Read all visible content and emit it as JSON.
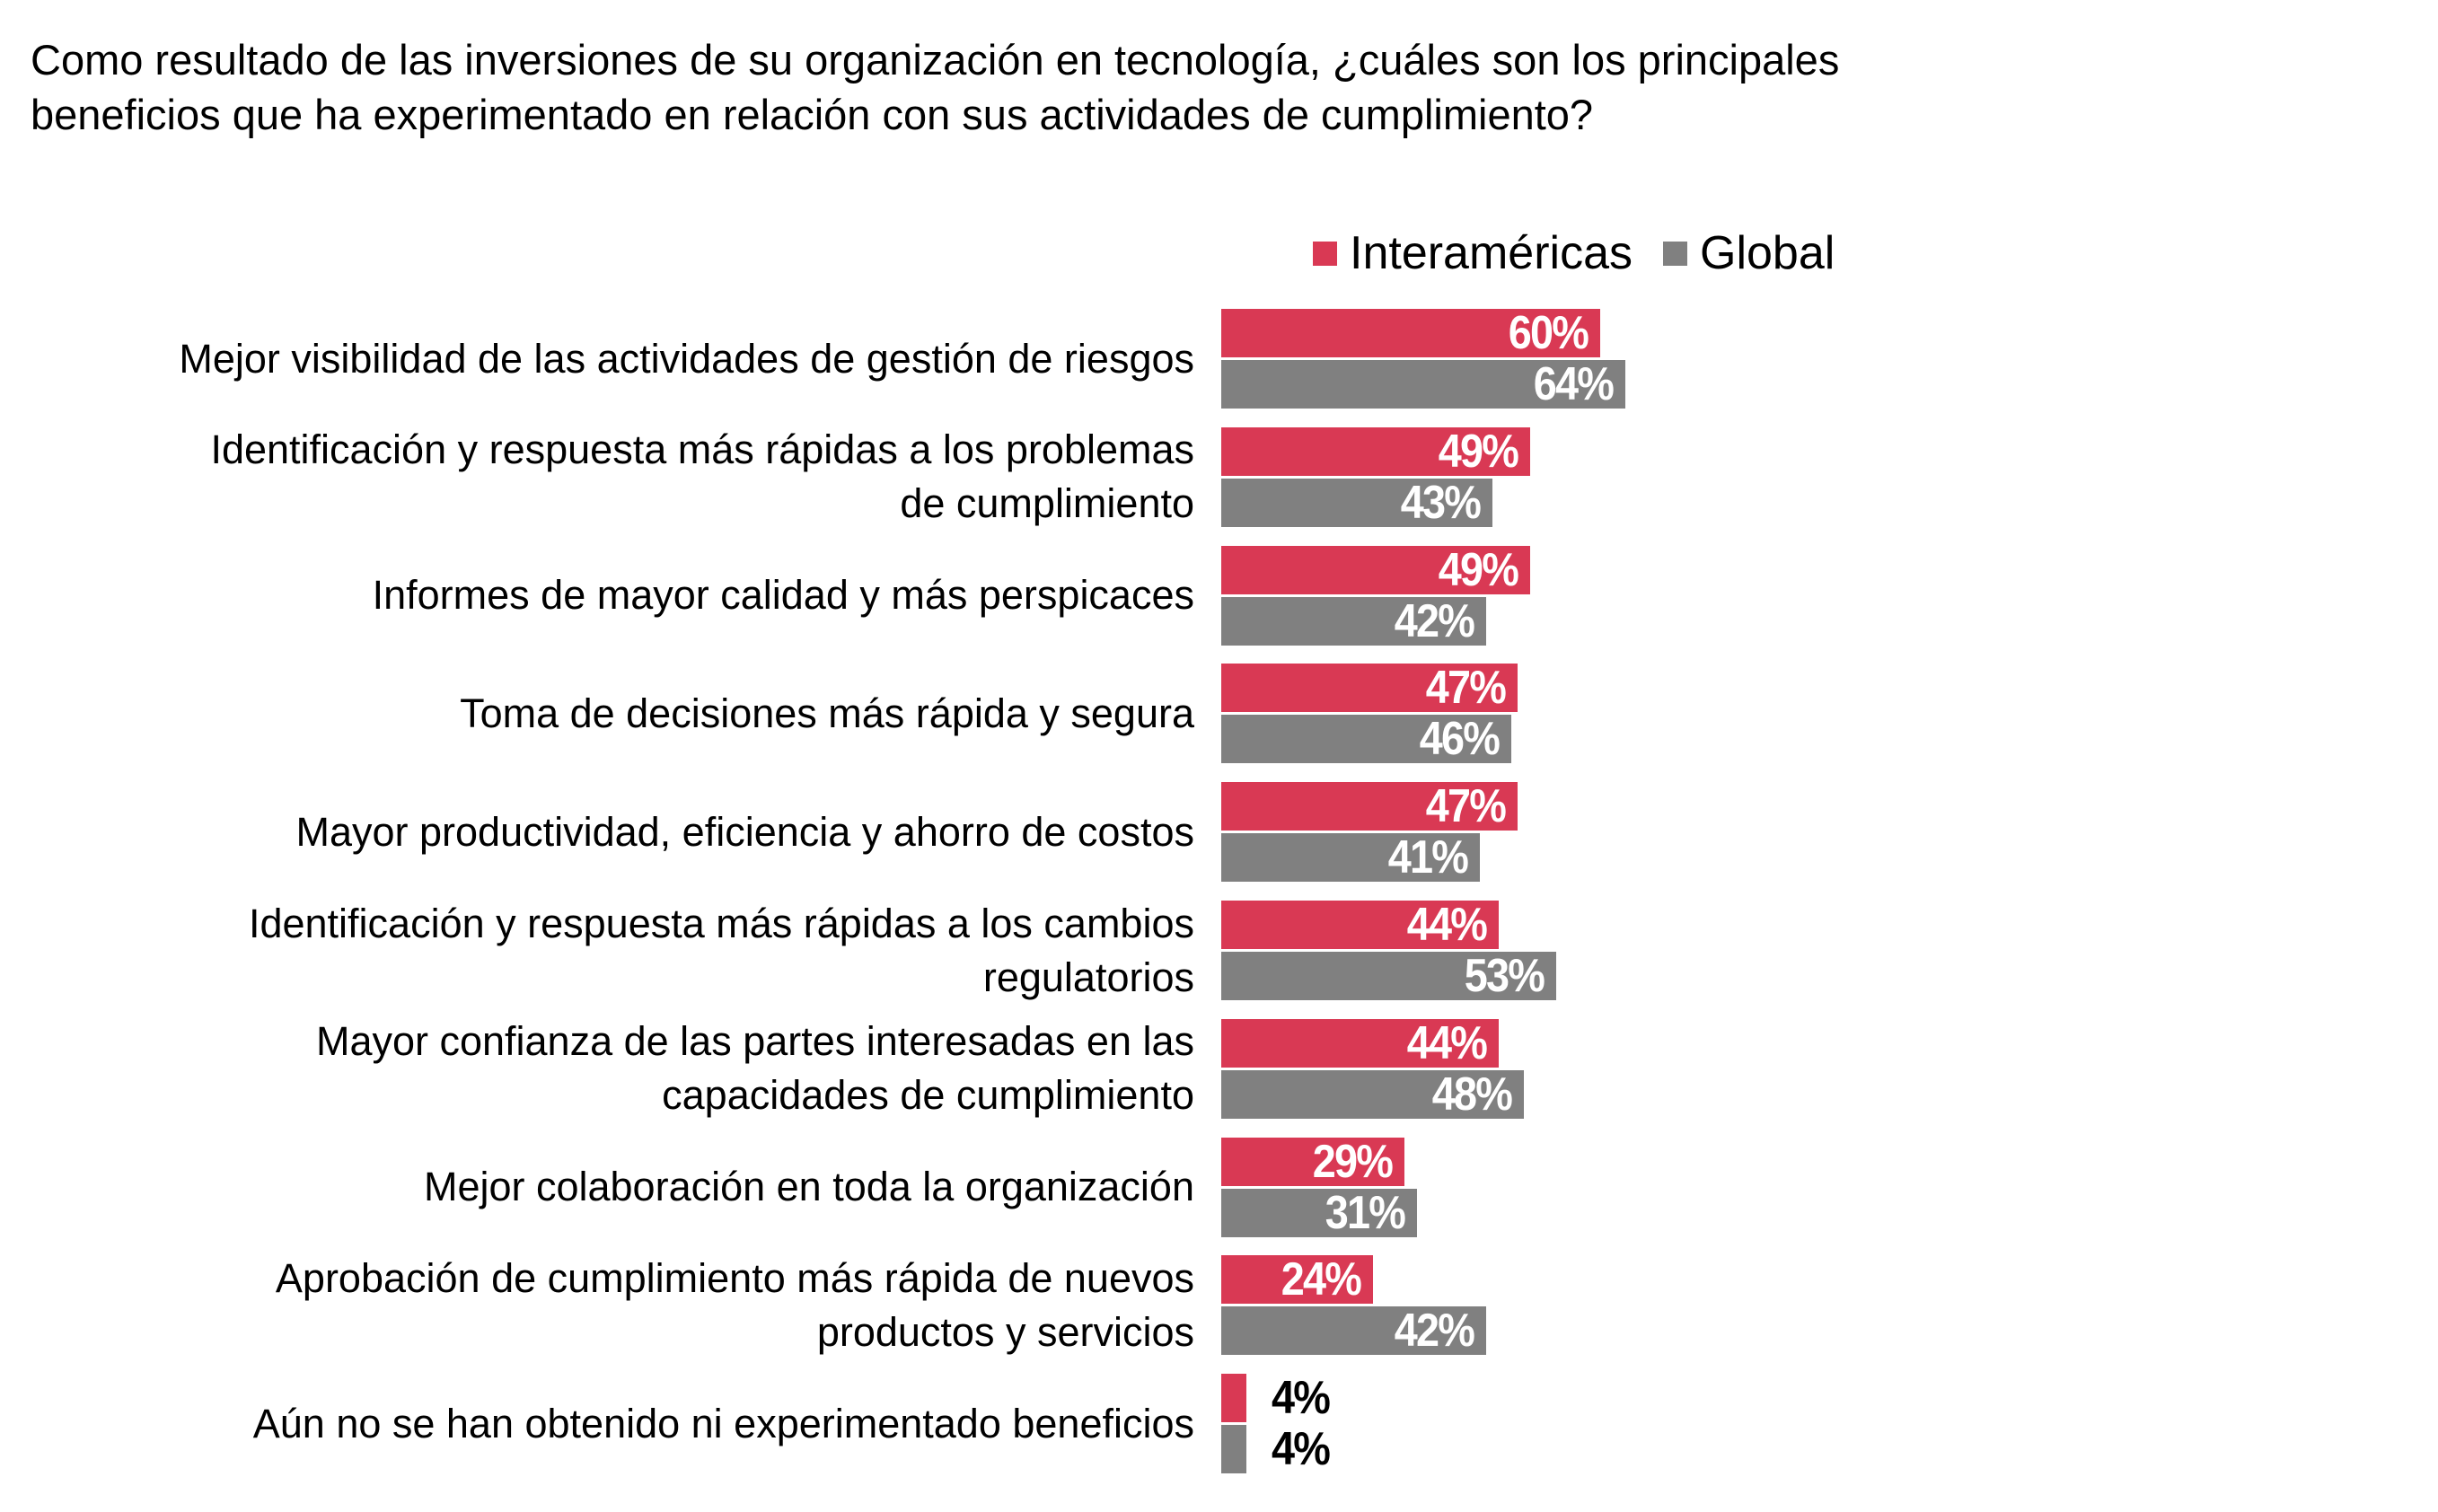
{
  "chart_data": {
    "type": "bar",
    "orientation": "horizontal",
    "title": "Como resultado de las inversiones de su organización en tecnología, ¿cuáles son los principales beneficios que ha experimentado en relación con sus actividades de cumplimiento?",
    "title_lines": [
      "Como resultado de las inversiones de su organización en tecnología, ¿cuáles son los principales",
      "beneficios que ha experimentado en relación con sus actividades de cumplimiento?"
    ],
    "categories": [
      [
        "Mejor visibilidad de las actividades de gestión de riesgos"
      ],
      [
        "Identificación y respuesta más rápidas a los problemas",
        "de cumplimiento"
      ],
      [
        "Informes de mayor calidad y más perspicaces"
      ],
      [
        "Toma de decisiones más rápida y segura"
      ],
      [
        "Mayor productividad, eficiencia y ahorro de costos"
      ],
      [
        "Identificación y respuesta más rápidas a los cambios",
        "regulatorios"
      ],
      [
        "Mayor confianza de las partes interesadas en las",
        "capacidades de cumplimiento"
      ],
      [
        "Mejor colaboración en toda la organización"
      ],
      [
        "Aprobación de cumplimiento más rápida de nuevos",
        "productos y servicios"
      ],
      [
        "Aún no se han obtenido ni experimentado beneficios"
      ]
    ],
    "series": [
      {
        "name": "Interaméricas",
        "color": "#D93954",
        "values": [
          60,
          49,
          49,
          47,
          47,
          44,
          44,
          29,
          24,
          4
        ]
      },
      {
        "name": "Global",
        "color": "#808080",
        "values": [
          64,
          43,
          42,
          46,
          41,
          53,
          48,
          31,
          42,
          4
        ]
      }
    ],
    "value_suffix": "%",
    "xlim": [
      0,
      100
    ],
    "legend": "top",
    "grid": false
  }
}
